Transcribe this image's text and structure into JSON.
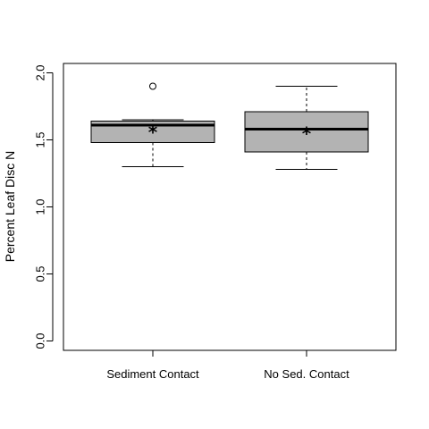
{
  "chart_data": {
    "type": "boxplot",
    "ylabel": "Percent Leaf Disc N",
    "xlabel": "",
    "ylim": [
      -0.07,
      2.07
    ],
    "yticks": [
      0.0,
      0.5,
      1.0,
      1.5,
      2.0
    ],
    "ytick_labels": [
      "0.0",
      "0.5",
      "1.0",
      "1.5",
      "2.0"
    ],
    "grid": false,
    "mean_marker": "*",
    "box_color": "#b3b3b3",
    "categories": [
      "Sediment Contact",
      "No Sed. Contact"
    ],
    "boxes": [
      {
        "category": "Sediment Contact",
        "whisker_low": 1.3,
        "q1": 1.48,
        "median": 1.61,
        "q3": 1.64,
        "whisker_high": 1.65,
        "mean": 1.57,
        "outliers": [
          1.9
        ]
      },
      {
        "category": "No Sed. Contact",
        "whisker_low": 1.28,
        "q1": 1.41,
        "median": 1.58,
        "q3": 1.71,
        "whisker_high": 1.9,
        "mean": 1.56,
        "outliers": []
      }
    ]
  }
}
